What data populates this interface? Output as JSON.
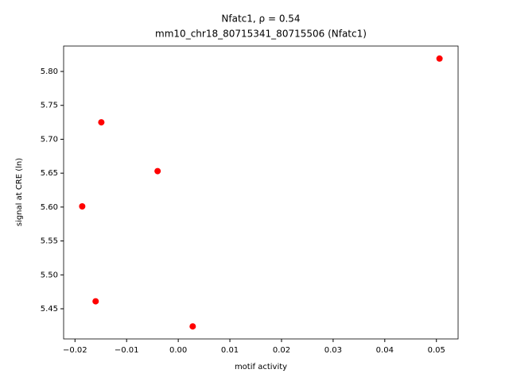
{
  "chart_data": {
    "type": "scatter",
    "title": "Nfatc1, ρ = 0.54",
    "subtitle": "mm10_chr18_80715341_80715506 (Nfatc1)",
    "x_label": "motif activity",
    "y_label": "signal at CRE (ln)",
    "color": "#ff0000",
    "x": [
      0.0506,
      -0.0149,
      -0.004,
      -0.0186,
      -0.016,
      0.0028
    ],
    "values": [
      5.819,
      5.725,
      5.653,
      5.601,
      5.461,
      5.424
    ],
    "xlim": [
      -0.0222,
      0.0542
    ],
    "ylim": [
      5.4055,
      5.8375
    ],
    "xticks": [
      {
        "value": -0.02,
        "label": "−0.02"
      },
      {
        "value": -0.01,
        "label": "−0.01"
      },
      {
        "value": 0,
        "label": "0.00"
      },
      0.01,
      0.02,
      0.03,
      0.04,
      0.05
    ],
    "yticks": [
      5.45,
      {
        "value": 5.5,
        "label": "5.50"
      },
      5.55,
      {
        "value": 5.6,
        "label": "5.60"
      },
      5.65,
      {
        "value": 5.7,
        "label": "5.70"
      },
      5.75,
      {
        "value": 5.8,
        "label": "5.80"
      }
    ]
  }
}
